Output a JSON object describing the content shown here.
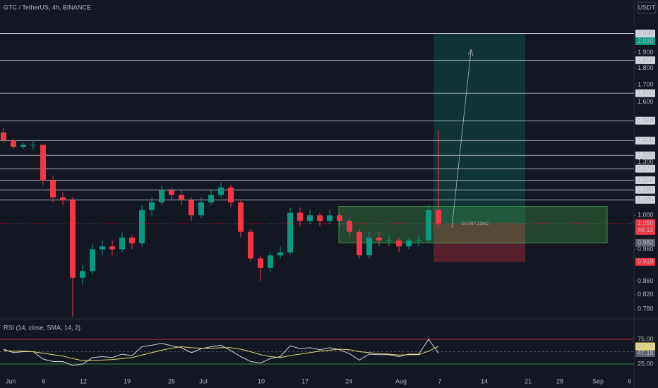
{
  "chart_data": {
    "type": "candlestick",
    "title": "GTC / TetherUS, 4h, BINANCE",
    "currency_button": "USDT",
    "log_scale": true,
    "ylim": [
      0.758,
      2.28
    ],
    "yticks": [
      {
        "value": 0.78,
        "label": "0.780"
      },
      {
        "value": 0.82,
        "label": "0.820"
      },
      {
        "value": 0.86,
        "label": "0.860"
      },
      {
        "value": 0.96,
        "label": "0.960"
      },
      {
        "value": 1.08,
        "label": "1.080"
      },
      {
        "value": 1.3,
        "label": "1.300"
      },
      {
        "value": 1.6,
        "label": "1.600"
      },
      {
        "value": 1.7,
        "label": "1.700"
      },
      {
        "value": 1.8,
        "label": "1.800"
      },
      {
        "value": 1.9,
        "label": "1.900"
      }
    ],
    "x_labels": [
      "Jun",
      "6",
      "12",
      "19",
      "26",
      "Jul",
      "10",
      "17",
      "24",
      "Aug",
      "7",
      "14",
      "21",
      "28",
      "Sep",
      "6"
    ],
    "up_color": "#089981",
    "down_color": "#f23645",
    "open": [
      1.44,
      1.4,
      1.37,
      1.38,
      1.38,
      1.22,
      1.15,
      1.14,
      0.87,
      0.89,
      0.96,
      0.97,
      0.96,
      1.0,
      0.98,
      1.1,
      1.13,
      1.18,
      1.16,
      1.14,
      1.08,
      1.13,
      1.16,
      1.19,
      1.13,
      1.02,
      0.93,
      0.9,
      0.94,
      0.95,
      1.09,
      1.06,
      1.08,
      1.06,
      1.08,
      1.06,
      1.02,
      0.94,
      1.0,
      0.99,
      0.99,
      0.97,
      0.99,
      0.99,
      1.1
    ],
    "high": [
      1.46,
      1.41,
      1.39,
      1.4,
      1.38,
      1.24,
      1.17,
      1.15,
      0.91,
      0.98,
      0.99,
      0.99,
      1.02,
      1.01,
      1.12,
      1.15,
      1.2,
      1.19,
      1.18,
      1.15,
      1.15,
      1.18,
      1.21,
      1.2,
      1.14,
      1.03,
      0.94,
      0.95,
      0.97,
      1.11,
      1.11,
      1.1,
      1.09,
      1.1,
      1.09,
      1.07,
      1.03,
      1.02,
      1.02,
      1.01,
      1.0,
      1.0,
      1.01,
      1.12,
      1.45
    ],
    "low": [
      1.39,
      1.36,
      1.36,
      1.36,
      1.2,
      1.13,
      1.12,
      0.76,
      0.85,
      0.88,
      0.94,
      0.94,
      0.95,
      0.96,
      0.97,
      1.08,
      1.12,
      1.14,
      1.12,
      1.06,
      1.07,
      1.12,
      1.15,
      1.11,
      1.0,
      0.92,
      0.86,
      0.89,
      0.93,
      0.94,
      1.04,
      1.05,
      1.04,
      1.05,
      1.04,
      1.0,
      0.93,
      0.93,
      0.97,
      0.97,
      0.95,
      0.96,
      0.97,
      0.98,
      1.04
    ],
    "close": [
      1.4,
      1.37,
      1.38,
      1.38,
      1.22,
      1.15,
      1.14,
      0.87,
      0.89,
      0.96,
      0.97,
      0.96,
      1.0,
      0.98,
      1.1,
      1.13,
      1.18,
      1.16,
      1.14,
      1.08,
      1.13,
      1.16,
      1.19,
      1.13,
      1.02,
      0.93,
      0.9,
      0.94,
      0.95,
      1.09,
      1.06,
      1.08,
      1.06,
      1.08,
      1.06,
      1.02,
      0.94,
      1.0,
      0.99,
      0.99,
      0.97,
      0.99,
      0.99,
      1.1,
      1.05
    ],
    "levels": [
      {
        "value": 2.03,
        "label": "2.030"
      },
      {
        "value": 1.85,
        "label": "1.850"
      },
      {
        "value": 1.65,
        "label": "1.650"
      },
      {
        "value": 1.5,
        "label": "1.500"
      },
      {
        "value": 1.4,
        "label": "1.400"
      },
      {
        "value": 1.33,
        "label": "1.330"
      },
      {
        "value": 1.27,
        "label": "1.270"
      },
      {
        "value": 1.22,
        "label": "1.220"
      },
      {
        "value": 1.18,
        "label": "1.180"
      },
      {
        "value": 1.14,
        "label": "1.140"
      }
    ],
    "current_price": {
      "value": 1.05,
      "label": "1.050"
    },
    "countdown": "46:12",
    "target": {
      "value": 2.03,
      "label": "2.030"
    },
    "stop": {
      "value": 0.919,
      "label": "0.919"
    },
    "entry_zone": {
      "label": "ENTRY ZONE",
      "top": 1.114,
      "bottom": {
        "value": 0.982,
        "label": "0.982"
      }
    },
    "rsi": {
      "title": "RSI (14, close, SMA, 14, 2)",
      "ylim": [
        0,
        100
      ],
      "yticks": [
        {
          "value": 75,
          "label": "75.00"
        },
        {
          "value": 25,
          "label": "25.00"
        }
      ],
      "series": [
        {
          "name": "RSI",
          "color": "#d1d4dc",
          "values": [
            55,
            48,
            50,
            50,
            35,
            30,
            30,
            22,
            25,
            38,
            40,
            38,
            45,
            42,
            60,
            63,
            67,
            62,
            58,
            48,
            56,
            60,
            63,
            52,
            40,
            30,
            27,
            36,
            40,
            62,
            56,
            58,
            54,
            58,
            54,
            46,
            33,
            45,
            44,
            44,
            40,
            45,
            45,
            75,
            47.18
          ],
          "value_label": "47.18"
        },
        {
          "name": "SMA",
          "color": "#e8d87a",
          "values": [
            52,
            51,
            51,
            50,
            47,
            44,
            41,
            36,
            32,
            32,
            33,
            34,
            36,
            38,
            43,
            48,
            53,
            57,
            60,
            58,
            57,
            57,
            58,
            58,
            55,
            50,
            44,
            40,
            38,
            42,
            45,
            48,
            51,
            53,
            55,
            54,
            50,
            48,
            46,
            45,
            43,
            44,
            44,
            51,
            60.7
          ],
          "value_label": "60.70"
        }
      ]
    }
  }
}
